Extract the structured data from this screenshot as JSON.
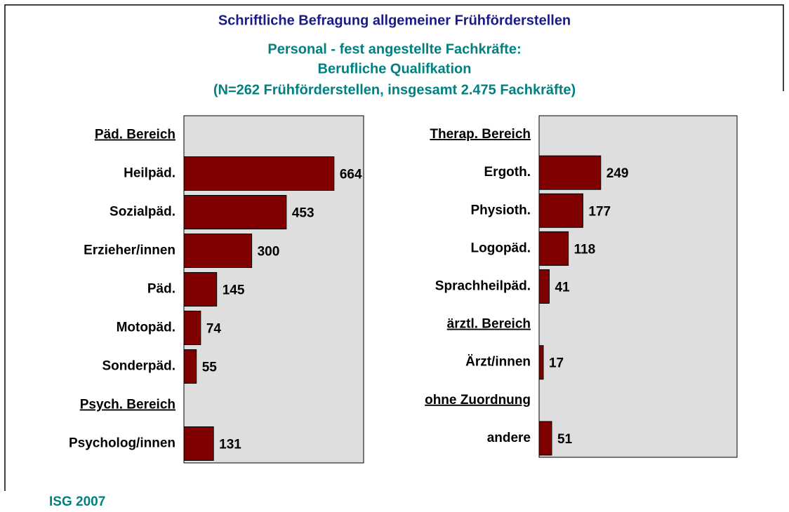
{
  "title": "Schriftliche Befragung allgemeiner Frühförderstellen",
  "subtitle": [
    "Personal - fest angestellte Fachkräfte:",
    "Berufliche Qualifkation",
    "(N=262 Frühförderstellen, insgesamt 2.475 Fachkräfte)"
  ],
  "footer": "ISG 2007",
  "chart_data": [
    {
      "type": "bar",
      "orientation": "horizontal",
      "color": "#800000",
      "categories": [
        "Päd. Bereich",
        "Heilpäd.",
        "Sozialpäd.",
        "Erzieher/innen",
        "Päd.",
        "Motopäd.",
        "Sonderpäd.",
        "Psych. Bereich",
        "Psycholog/innen"
      ],
      "values": [
        null,
        664,
        453,
        300,
        145,
        74,
        55,
        null,
        131
      ],
      "xlim": [
        0,
        795
      ]
    },
    {
      "type": "bar",
      "orientation": "horizontal",
      "color": "#800000",
      "categories": [
        "Therap. Bereich",
        "Ergoth.",
        "Physioth.",
        "Logopäd.",
        "Sprachheilpäd.",
        "ärztl. Bereich",
        "Ärzt/innen",
        "ohne Zuordnung",
        "andere"
      ],
      "values": [
        null,
        249,
        177,
        118,
        41,
        null,
        17,
        null,
        51
      ],
      "xlim": [
        0,
        800
      ]
    }
  ]
}
